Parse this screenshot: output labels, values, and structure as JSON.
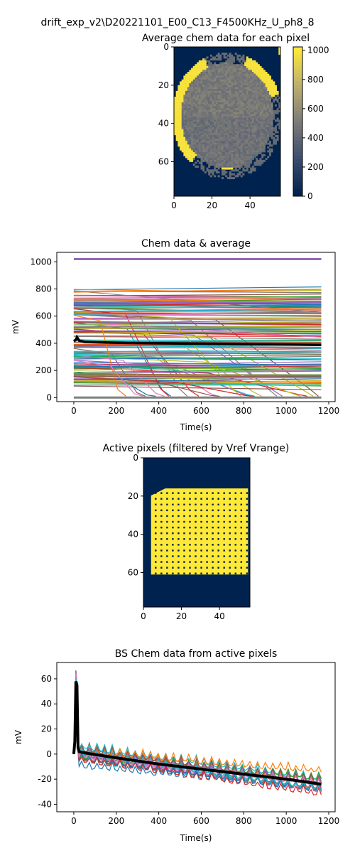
{
  "figure_title": "drift_exp_v2\\D20221101_E00_C13_F4500KHz_U_ph8_8",
  "chart_data": [
    {
      "type": "heatmap",
      "title": "Average chem data for each pixel",
      "xlabel": "",
      "ylabel": "",
      "xlim": [
        0,
        56
      ],
      "ylim": [
        78,
        0
      ],
      "xticks": [
        0,
        20,
        40
      ],
      "yticks": [
        0,
        20,
        40,
        60
      ],
      "grid": false,
      "colormap": "cividis",
      "colorbar": {
        "range": [
          0,
          1023
        ],
        "ticks": [
          0,
          200,
          400,
          600,
          800,
          1000
        ]
      },
      "regions": {
        "inner_disc_level": 500,
        "ring_level": 1000,
        "background_level": 0
      }
    },
    {
      "type": "line",
      "title": "Chem data & average",
      "xlabel": "Time(s)",
      "ylabel": "mV",
      "xlim": [
        -80,
        1230
      ],
      "ylim": [
        -30,
        1070
      ],
      "xticks": [
        0,
        200,
        400,
        600,
        800,
        1000,
        1200
      ],
      "yticks": [
        0,
        200,
        400,
        600,
        800,
        1000
      ],
      "grid": false,
      "legend": "none",
      "series": [
        {
          "values_note": "",
          "x": [
            0,
            10,
            15,
            25,
            50,
            200,
            400,
            600,
            800,
            1000,
            1165
          ],
          "y": [
            415,
            425,
            445,
            420,
            410,
            404,
            400,
            397,
            394,
            391,
            388
          ],
          "color": "#000000"
        }
      ],
      "band_levels": {
        "top_saturated": 1020,
        "zero_line": 0
      }
    },
    {
      "type": "heatmap",
      "title": "Active pixels (filtered by Vref Vrange)",
      "xlabel": "",
      "ylabel": "",
      "xlim": [
        0,
        56
      ],
      "ylim": [
        78,
        0
      ],
      "xticks": [
        0,
        20,
        40
      ],
      "yticks": [
        0,
        20,
        40,
        60
      ],
      "grid": false,
      "colormap": "binary-cividis",
      "active_region": {
        "rows": [
          16,
          61
        ],
        "cols": [
          4,
          55
        ]
      }
    },
    {
      "type": "line",
      "title": "BS Chem data from active pixels",
      "xlabel": "Time(s)",
      "ylabel": "mV",
      "xlim": [
        -80,
        1230
      ],
      "ylim": [
        -46,
        73
      ],
      "xticks": [
        0,
        200,
        400,
        600,
        800,
        1000,
        1200
      ],
      "yticks": [
        60,
        40,
        20,
        0,
        -20,
        -40
      ],
      "grid": false,
      "legend": "none",
      "series": [
        {
          "x": [
            0,
            5,
            10,
            15,
            20,
            25,
            50,
            200,
            400,
            600,
            800,
            1000,
            1165
          ],
          "y": [
            0,
            10,
            58,
            55,
            5,
            2,
            1,
            -3,
            -8,
            -12,
            -16,
            -20,
            -24
          ],
          "color": "#000000"
        }
      ]
    }
  ]
}
